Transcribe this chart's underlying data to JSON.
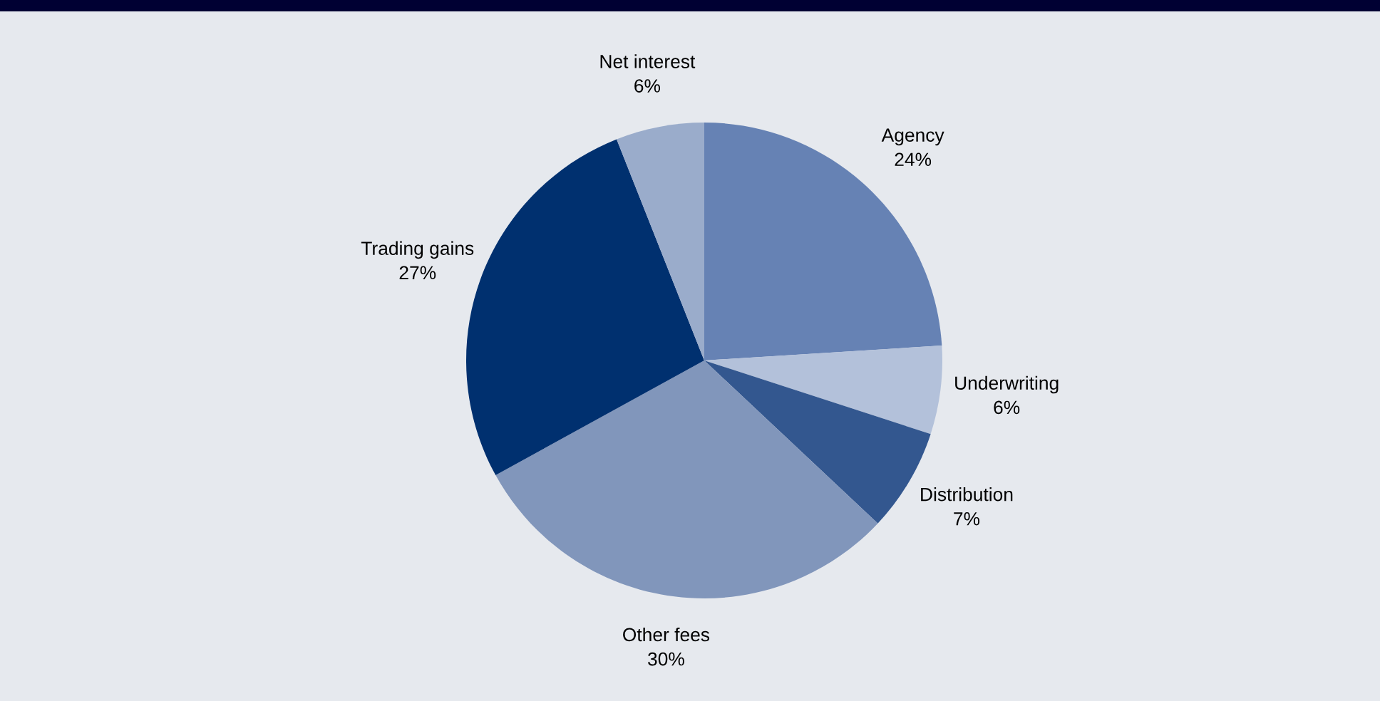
{
  "chart_data": {
    "type": "pie",
    "categories": [
      "Agency",
      "Underwriting",
      "Distribution",
      "Other fees",
      "Trading gains",
      "Net interest"
    ],
    "values": [
      24,
      6,
      7,
      30,
      27,
      6
    ],
    "colors": [
      "#6682b4",
      "#b3c1da",
      "#33578f",
      "#8196bb",
      "#00306f",
      "#9aaccb"
    ],
    "value_labels": [
      "24%",
      "6%",
      "7%",
      "30%",
      "27%",
      "6%"
    ]
  }
}
